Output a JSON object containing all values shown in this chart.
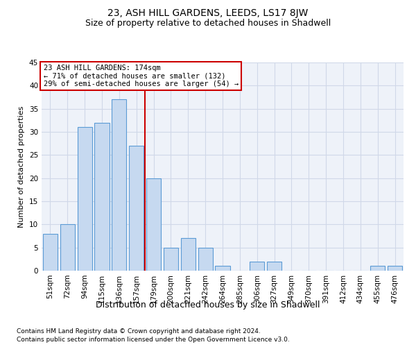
{
  "title": "23, ASH HILL GARDENS, LEEDS, LS17 8JW",
  "subtitle": "Size of property relative to detached houses in Shadwell",
  "xlabel": "Distribution of detached houses by size in Shadwell",
  "ylabel": "Number of detached properties",
  "footnote1": "Contains HM Land Registry data © Crown copyright and database right 2024.",
  "footnote2": "Contains public sector information licensed under the Open Government Licence v3.0.",
  "categories": [
    "51sqm",
    "72sqm",
    "94sqm",
    "115sqm",
    "136sqm",
    "157sqm",
    "179sqm",
    "200sqm",
    "221sqm",
    "242sqm",
    "264sqm",
    "285sqm",
    "306sqm",
    "327sqm",
    "349sqm",
    "370sqm",
    "391sqm",
    "412sqm",
    "434sqm",
    "455sqm",
    "476sqm"
  ],
  "values": [
    8,
    10,
    31,
    32,
    37,
    27,
    20,
    5,
    7,
    5,
    1,
    0,
    2,
    2,
    0,
    0,
    0,
    0,
    0,
    1,
    1
  ],
  "bar_color": "#c6d9f0",
  "bar_edge_color": "#5b9bd5",
  "grid_color": "#d0d8e8",
  "background_color": "#eef2f9",
  "property_line_x": 5.5,
  "annotation_text1": "23 ASH HILL GARDENS: 174sqm",
  "annotation_text2": "← 71% of detached houses are smaller (132)",
  "annotation_text3": "29% of semi-detached houses are larger (54) →",
  "annotation_box_color": "#cc0000",
  "ylim": [
    0,
    45
  ],
  "yticks": [
    0,
    5,
    10,
    15,
    20,
    25,
    30,
    35,
    40,
    45
  ],
  "title_fontsize": 10,
  "subtitle_fontsize": 9,
  "ylabel_fontsize": 8,
  "xlabel_fontsize": 9,
  "tick_fontsize": 7.5,
  "annotation_fontsize": 7.5,
  "footnote_fontsize": 6.5
}
